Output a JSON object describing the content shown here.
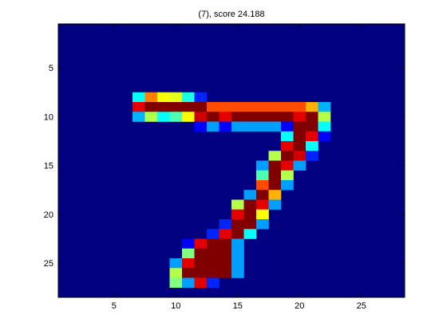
{
  "chart_data": {
    "type": "heatmap",
    "title": "(7), score 24.188",
    "xlabel": "",
    "ylabel": "",
    "xlim": [
      0.5,
      28.5
    ],
    "ylim": [
      0.5,
      28.5
    ],
    "y_reversed": true,
    "xticks": [
      5,
      10,
      15,
      20,
      25
    ],
    "yticks": [
      5,
      10,
      15,
      20,
      25
    ],
    "grid": false,
    "colormap": "jet",
    "clim": [
      0,
      1
    ],
    "rows": 28,
    "cols": 28,
    "background_value": 0,
    "cells": [
      {
        "r": 8,
        "c": 7,
        "v": 0.38
      },
      {
        "r": 8,
        "c": 8,
        "v": 0.75
      },
      {
        "r": 8,
        "c": 9,
        "v": 0.62
      },
      {
        "r": 8,
        "c": 10,
        "v": 0.6
      },
      {
        "r": 8,
        "c": 11,
        "v": 0.4
      },
      {
        "r": 8,
        "c": 12,
        "v": 0.16
      },
      {
        "r": 9,
        "c": 7,
        "v": 0.9
      },
      {
        "r": 9,
        "c": 8,
        "v": 1.0
      },
      {
        "r": 9,
        "c": 9,
        "v": 1.0
      },
      {
        "r": 9,
        "c": 10,
        "v": 1.0
      },
      {
        "r": 9,
        "c": 11,
        "v": 1.0
      },
      {
        "r": 9,
        "c": 12,
        "v": 1.0
      },
      {
        "r": 9,
        "c": 13,
        "v": 0.8
      },
      {
        "r": 9,
        "c": 14,
        "v": 0.8
      },
      {
        "r": 9,
        "c": 15,
        "v": 0.8
      },
      {
        "r": 9,
        "c": 16,
        "v": 0.8
      },
      {
        "r": 9,
        "c": 17,
        "v": 0.8
      },
      {
        "r": 9,
        "c": 18,
        "v": 0.8
      },
      {
        "r": 9,
        "c": 19,
        "v": 0.8
      },
      {
        "r": 9,
        "c": 20,
        "v": 0.8
      },
      {
        "r": 9,
        "c": 21,
        "v": 0.7
      },
      {
        "r": 9,
        "c": 22,
        "v": 0.3
      },
      {
        "r": 10,
        "c": 7,
        "v": 0.3
      },
      {
        "r": 10,
        "c": 8,
        "v": 0.55
      },
      {
        "r": 10,
        "c": 9,
        "v": 0.38
      },
      {
        "r": 10,
        "c": 10,
        "v": 0.45
      },
      {
        "r": 10,
        "c": 11,
        "v": 0.62
      },
      {
        "r": 10,
        "c": 12,
        "v": 0.92
      },
      {
        "r": 10,
        "c": 13,
        "v": 1.0
      },
      {
        "r": 10,
        "c": 14,
        "v": 0.9
      },
      {
        "r": 10,
        "c": 15,
        "v": 1.0
      },
      {
        "r": 10,
        "c": 16,
        "v": 1.0
      },
      {
        "r": 10,
        "c": 17,
        "v": 1.0
      },
      {
        "r": 10,
        "c": 18,
        "v": 1.0
      },
      {
        "r": 10,
        "c": 19,
        "v": 1.0
      },
      {
        "r": 10,
        "c": 20,
        "v": 0.9
      },
      {
        "r": 10,
        "c": 21,
        "v": 1.0
      },
      {
        "r": 10,
        "c": 22,
        "v": 0.55
      },
      {
        "r": 11,
        "c": 12,
        "v": 0.12
      },
      {
        "r": 11,
        "c": 13,
        "v": 0.28
      },
      {
        "r": 11,
        "c": 14,
        "v": 0.12
      },
      {
        "r": 11,
        "c": 15,
        "v": 0.28
      },
      {
        "r": 11,
        "c": 16,
        "v": 0.28
      },
      {
        "r": 11,
        "c": 17,
        "v": 0.28
      },
      {
        "r": 11,
        "c": 18,
        "v": 0.28
      },
      {
        "r": 11,
        "c": 19,
        "v": 0.12
      },
      {
        "r": 11,
        "c": 20,
        "v": 1.0
      },
      {
        "r": 11,
        "c": 21,
        "v": 1.0
      },
      {
        "r": 11,
        "c": 22,
        "v": 0.38
      },
      {
        "r": 12,
        "c": 19,
        "v": 0.38
      },
      {
        "r": 12,
        "c": 20,
        "v": 1.0
      },
      {
        "r": 12,
        "c": 21,
        "v": 0.9
      },
      {
        "r": 12,
        "c": 22,
        "v": 0.12
      },
      {
        "r": 13,
        "c": 19,
        "v": 0.9
      },
      {
        "r": 13,
        "c": 20,
        "v": 1.0
      },
      {
        "r": 13,
        "c": 21,
        "v": 0.38
      },
      {
        "r": 14,
        "c": 18,
        "v": 0.55
      },
      {
        "r": 14,
        "c": 19,
        "v": 1.0
      },
      {
        "r": 14,
        "c": 20,
        "v": 0.92
      },
      {
        "r": 14,
        "c": 21,
        "v": 0.16
      },
      {
        "r": 15,
        "c": 17,
        "v": 0.28
      },
      {
        "r": 15,
        "c": 18,
        "v": 1.0
      },
      {
        "r": 15,
        "c": 19,
        "v": 0.9
      },
      {
        "r": 15,
        "c": 20,
        "v": 0.28
      },
      {
        "r": 16,
        "c": 17,
        "v": 0.45
      },
      {
        "r": 16,
        "c": 18,
        "v": 1.0
      },
      {
        "r": 16,
        "c": 19,
        "v": 0.55
      },
      {
        "r": 17,
        "c": 17,
        "v": 0.8
      },
      {
        "r": 17,
        "c": 18,
        "v": 1.0
      },
      {
        "r": 17,
        "c": 19,
        "v": 0.28
      },
      {
        "r": 18,
        "c": 16,
        "v": 0.28
      },
      {
        "r": 18,
        "c": 17,
        "v": 1.0
      },
      {
        "r": 18,
        "c": 18,
        "v": 0.7
      },
      {
        "r": 19,
        "c": 15,
        "v": 0.55
      },
      {
        "r": 19,
        "c": 16,
        "v": 1.0
      },
      {
        "r": 19,
        "c": 17,
        "v": 0.9
      },
      {
        "r": 19,
        "c": 18,
        "v": 0.28
      },
      {
        "r": 20,
        "c": 15,
        "v": 0.9
      },
      {
        "r": 20,
        "c": 16,
        "v": 1.0
      },
      {
        "r": 20,
        "c": 17,
        "v": 0.62
      },
      {
        "r": 21,
        "c": 14,
        "v": 0.16
      },
      {
        "r": 21,
        "c": 15,
        "v": 1.0
      },
      {
        "r": 21,
        "c": 16,
        "v": 1.0
      },
      {
        "r": 21,
        "c": 17,
        "v": 0.28
      },
      {
        "r": 22,
        "c": 13,
        "v": 0.16
      },
      {
        "r": 22,
        "c": 14,
        "v": 0.9
      },
      {
        "r": 22,
        "c": 15,
        "v": 1.0
      },
      {
        "r": 22,
        "c": 16,
        "v": 0.38
      },
      {
        "r": 23,
        "c": 11,
        "v": 0.12
      },
      {
        "r": 23,
        "c": 12,
        "v": 0.9
      },
      {
        "r": 23,
        "c": 13,
        "v": 1.0
      },
      {
        "r": 23,
        "c": 14,
        "v": 1.0
      },
      {
        "r": 23,
        "c": 15,
        "v": 0.28
      },
      {
        "r": 24,
        "c": 11,
        "v": 0.5
      },
      {
        "r": 24,
        "c": 12,
        "v": 1.0
      },
      {
        "r": 24,
        "c": 13,
        "v": 1.0
      },
      {
        "r": 24,
        "c": 14,
        "v": 1.0
      },
      {
        "r": 24,
        "c": 15,
        "v": 0.28
      },
      {
        "r": 25,
        "c": 10,
        "v": 0.28
      },
      {
        "r": 25,
        "c": 11,
        "v": 0.9
      },
      {
        "r": 25,
        "c": 12,
        "v": 1.0
      },
      {
        "r": 25,
        "c": 13,
        "v": 1.0
      },
      {
        "r": 25,
        "c": 14,
        "v": 1.0
      },
      {
        "r": 25,
        "c": 15,
        "v": 0.28
      },
      {
        "r": 26,
        "c": 10,
        "v": 0.55
      },
      {
        "r": 26,
        "c": 11,
        "v": 1.0
      },
      {
        "r": 26,
        "c": 12,
        "v": 1.0
      },
      {
        "r": 26,
        "c": 13,
        "v": 1.0
      },
      {
        "r": 26,
        "c": 14,
        "v": 1.0
      },
      {
        "r": 26,
        "c": 15,
        "v": 0.28
      },
      {
        "r": 27,
        "c": 10,
        "v": 0.5
      },
      {
        "r": 27,
        "c": 11,
        "v": 0.28
      },
      {
        "r": 27,
        "c": 12,
        "v": 0.9
      },
      {
        "r": 27,
        "c": 13,
        "v": 0.16
      }
    ]
  }
}
